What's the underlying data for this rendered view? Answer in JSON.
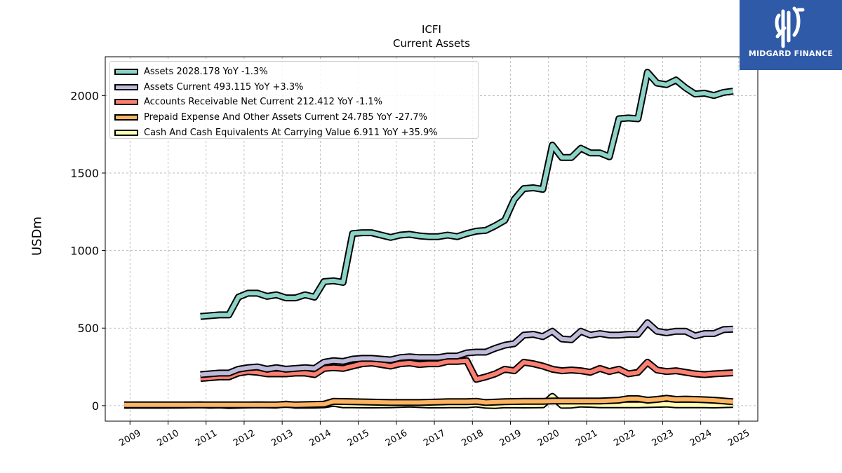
{
  "chart_data": {
    "type": "area",
    "title": "ICFI",
    "subtitle": "Current  Assets",
    "ylabel": "USDm",
    "xlabel": "",
    "ylim": [
      -100,
      2250
    ],
    "xlim": [
      2008.35,
      2025.5
    ],
    "yticks": [
      0,
      500,
      1000,
      1500,
      2000
    ],
    "xticks": [
      "2009",
      "2010",
      "2011",
      "2012",
      "2013",
      "2014",
      "2015",
      "2016",
      "2017",
      "2018",
      "2019",
      "2020",
      "2021",
      "2022",
      "2023",
      "2024",
      "2025"
    ],
    "grid": true,
    "legend_position": "top-left",
    "series": [
      {
        "name": "Assets  2028.178 YoY -1.3%",
        "color": "#8dd3c7",
        "x": [
          2010.85,
          2011.1,
          2011.35,
          2011.6,
          2011.85,
          2012.1,
          2012.35,
          2012.6,
          2012.85,
          2013.1,
          2013.35,
          2013.6,
          2013.85,
          2014.1,
          2014.35,
          2014.6,
          2014.85,
          2015.1,
          2015.35,
          2015.6,
          2015.85,
          2016.1,
          2016.35,
          2016.6,
          2016.85,
          2017.1,
          2017.35,
          2017.6,
          2017.85,
          2018.1,
          2018.35,
          2018.6,
          2018.85,
          2019.1,
          2019.35,
          2019.6,
          2019.85,
          2020.1,
          2020.35,
          2020.6,
          2020.85,
          2021.1,
          2021.35,
          2021.6,
          2021.85,
          2022.1,
          2022.35,
          2022.6,
          2022.85,
          2023.1,
          2023.35,
          2023.6,
          2023.85,
          2024.1,
          2024.35,
          2024.6,
          2024.85
        ],
        "values": [
          575,
          580,
          585,
          585,
          700,
          725,
          725,
          705,
          715,
          695,
          695,
          715,
          700,
          800,
          805,
          795,
          1110,
          1115,
          1115,
          1100,
          1085,
          1100,
          1105,
          1095,
          1090,
          1090,
          1100,
          1090,
          1110,
          1125,
          1130,
          1160,
          1195,
          1330,
          1400,
          1405,
          1395,
          1680,
          1600,
          1600,
          1660,
          1630,
          1630,
          1605,
          1850,
          1855,
          1850,
          2150,
          2080,
          2070,
          2100,
          2050,
          2010,
          2015,
          2000,
          2020,
          2028
        ]
      },
      {
        "name": "Assets Current  493.115 YoY +3.3%",
        "color": "#bebada",
        "x": [
          2010.85,
          2011.1,
          2011.35,
          2011.6,
          2011.85,
          2012.1,
          2012.35,
          2012.6,
          2012.85,
          2013.1,
          2013.35,
          2013.6,
          2013.85,
          2014.1,
          2014.35,
          2014.6,
          2014.85,
          2015.1,
          2015.35,
          2015.6,
          2015.85,
          2016.1,
          2016.35,
          2016.6,
          2016.85,
          2017.1,
          2017.35,
          2017.6,
          2017.85,
          2018.1,
          2018.35,
          2018.6,
          2018.85,
          2019.1,
          2019.35,
          2019.6,
          2019.85,
          2020.1,
          2020.35,
          2020.6,
          2020.85,
          2021.1,
          2021.35,
          2021.6,
          2021.85,
          2022.1,
          2022.35,
          2022.6,
          2022.85,
          2023.1,
          2023.35,
          2023.6,
          2023.85,
          2024.1,
          2024.35,
          2024.6,
          2024.85
        ],
        "values": [
          200,
          205,
          210,
          210,
          235,
          245,
          250,
          235,
          245,
          235,
          240,
          245,
          240,
          280,
          290,
          285,
          300,
          305,
          305,
          300,
          295,
          310,
          315,
          310,
          310,
          310,
          320,
          320,
          340,
          345,
          345,
          370,
          390,
          400,
          455,
          460,
          445,
          480,
          430,
          425,
          480,
          455,
          465,
          455,
          455,
          460,
          460,
          535,
          480,
          470,
          480,
          480,
          450,
          465,
          465,
          490,
          493
        ]
      },
      {
        "name": "Accounts Receivable Net Current  212.412 YoY -1.1%",
        "color": "#fb8072",
        "x": [
          2010.85,
          2011.1,
          2011.35,
          2011.6,
          2011.85,
          2012.1,
          2012.35,
          2012.6,
          2012.85,
          2013.1,
          2013.35,
          2013.6,
          2013.85,
          2014.1,
          2014.35,
          2014.6,
          2014.85,
          2015.1,
          2015.35,
          2015.6,
          2015.85,
          2016.1,
          2016.35,
          2016.6,
          2016.85,
          2017.1,
          2017.35,
          2017.6,
          2017.85,
          2018.1,
          2018.35,
          2018.6,
          2018.85,
          2019.1,
          2019.35,
          2019.6,
          2019.85,
          2020.1,
          2020.35,
          2020.6,
          2020.85,
          2021.1,
          2021.35,
          2021.6,
          2021.85,
          2022.1,
          2022.35,
          2022.6,
          2022.85,
          2023.1,
          2023.35,
          2023.6,
          2023.85,
          2024.1,
          2024.35,
          2024.6,
          2024.85
        ],
        "values": [
          175,
          180,
          185,
          185,
          210,
          220,
          215,
          205,
          205,
          205,
          210,
          210,
          200,
          240,
          245,
          240,
          255,
          270,
          275,
          265,
          255,
          270,
          275,
          265,
          270,
          270,
          285,
          285,
          290,
          170,
          185,
          205,
          235,
          225,
          280,
          270,
          255,
          235,
          225,
          230,
          225,
          215,
          240,
          220,
          235,
          205,
          215,
          280,
          230,
          220,
          225,
          215,
          205,
          200,
          205,
          208,
          212
        ]
      },
      {
        "name": "Prepaid Expense And Other Assets Current  24.785 YoY -27.7%",
        "color": "#fdb462",
        "x": [
          2008.85,
          2010.85,
          2011.85,
          2012.85,
          2013.1,
          2013.35,
          2013.85,
          2014.1,
          2014.35,
          2014.85,
          2015.85,
          2016.6,
          2017.35,
          2017.85,
          2018.1,
          2018.35,
          2018.85,
          2019.35,
          2019.85,
          2020.1,
          2020.35,
          2020.85,
          2021.35,
          2021.85,
          2022.1,
          2022.35,
          2022.6,
          2022.85,
          2023.1,
          2023.35,
          2023.6,
          2023.85,
          2024.1,
          2024.35,
          2024.85
        ],
        "values": [
          5,
          5,
          5,
          5,
          8,
          5,
          8,
          10,
          28,
          25,
          20,
          20,
          25,
          25,
          28,
          20,
          25,
          28,
          28,
          30,
          30,
          30,
          30,
          35,
          45,
          45,
          35,
          40,
          48,
          40,
          42,
          40,
          38,
          35,
          25
        ]
      },
      {
        "name": "Cash And Cash Equivalents At Carrying Value  6.911 YoY +35.9%",
        "color": "#ffffb3",
        "x": [
          2008.85,
          2009.35,
          2009.85,
          2010.35,
          2010.85,
          2011.1,
          2011.35,
          2011.6,
          2011.85,
          2012.35,
          2012.85,
          2013.1,
          2013.35,
          2013.85,
          2014.1,
          2014.35,
          2014.6,
          2014.85,
          2015.35,
          2015.85,
          2016.35,
          2016.85,
          2017.35,
          2017.85,
          2018.1,
          2018.35,
          2018.6,
          2018.85,
          2019.35,
          2019.85,
          2020.1,
          2020.35,
          2020.6,
          2020.85,
          2021.1,
          2021.35,
          2021.85,
          2022.35,
          2022.85,
          2023.1,
          2023.35,
          2023.85,
          2024.1,
          2024.35,
          2024.85
        ],
        "values": [
          2,
          2,
          2,
          3,
          5,
          2,
          4,
          1,
          2,
          5,
          3,
          10,
          2,
          3,
          5,
          15,
          5,
          5,
          4,
          5,
          10,
          4,
          5,
          5,
          10,
          2,
          1,
          5,
          4,
          5,
          60,
          2,
          3,
          10,
          8,
          5,
          5,
          5,
          8,
          10,
          5,
          5,
          5,
          4,
          7
        ]
      }
    ]
  },
  "logo": {
    "text": "MIDGARD FINANCE",
    "color": "#2f5aa8"
  }
}
